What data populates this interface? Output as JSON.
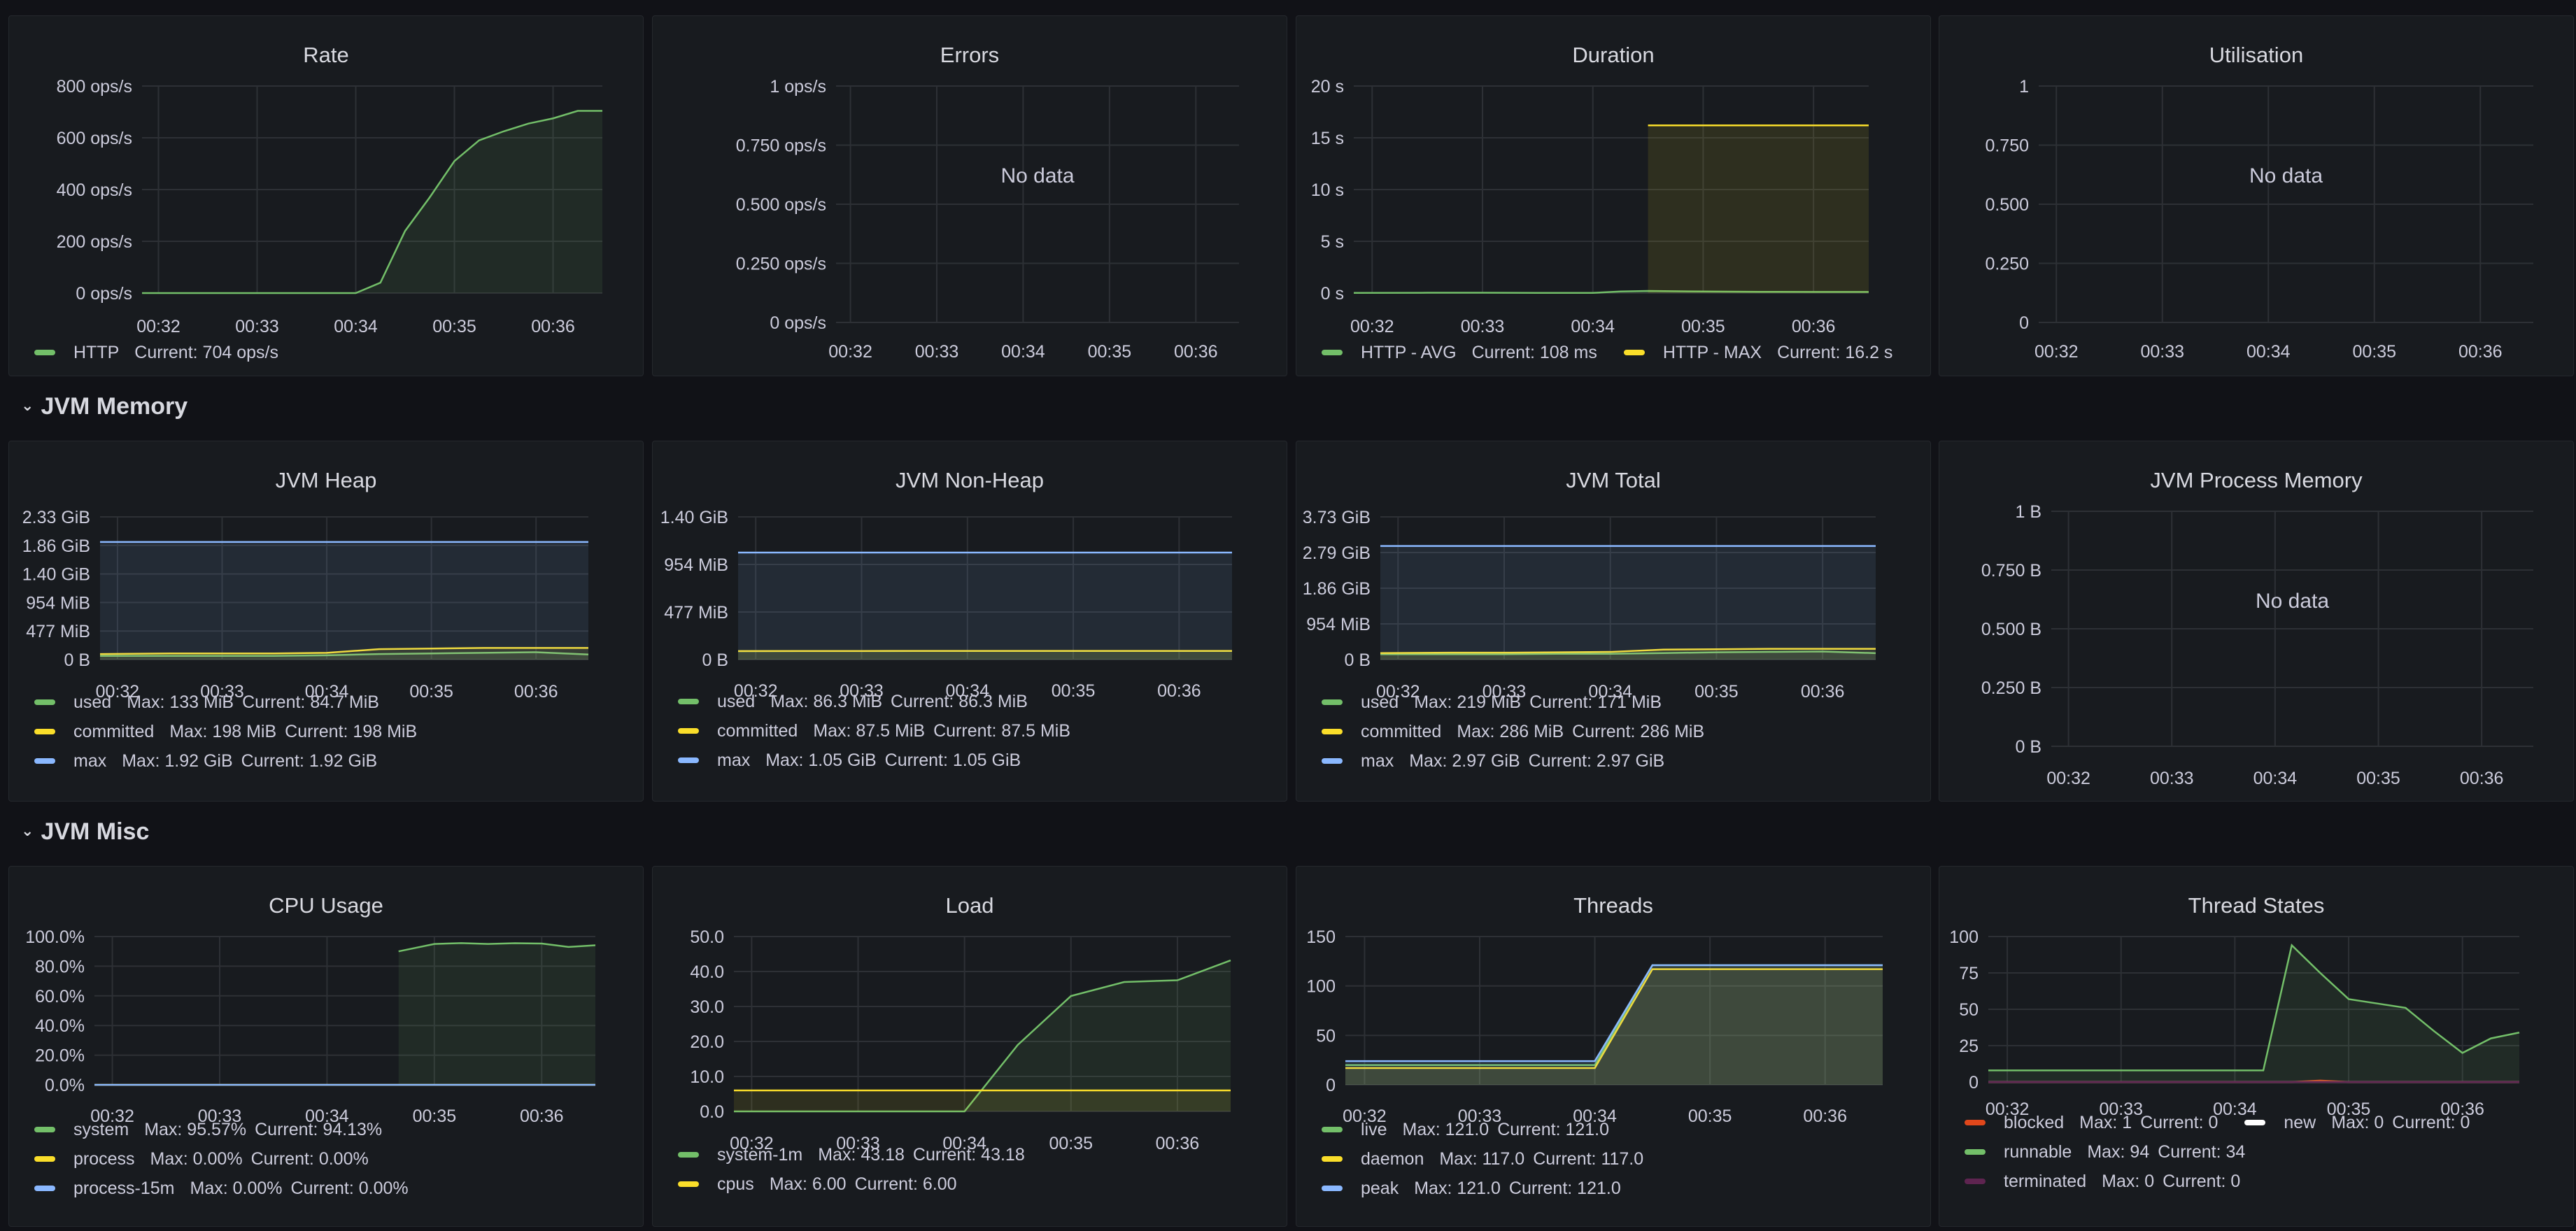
{
  "rows": {
    "jvm_memory": "JVM Memory",
    "jvm_misc": "JVM Misc"
  },
  "times": [
    "00:32",
    "00:33",
    "00:34",
    "00:35",
    "00:36"
  ],
  "panels": [
    {
      "id": "rate",
      "title": "Rate",
      "y_ticks": [
        "800 ops/s",
        "600 ops/s",
        "400 ops/s",
        "200 ops/s",
        "0 ops/s"
      ],
      "legend": [
        [
          {
            "name": "HTTP",
            "color": "#73bf69",
            "stats": [
              "Current: 704 ops/s"
            ]
          }
        ]
      ]
    },
    {
      "id": "errors",
      "title": "Errors",
      "no_data": "No data",
      "y_ticks": [
        "1 ops/s",
        "0.750 ops/s",
        "0.500 ops/s",
        "0.250 ops/s",
        "0 ops/s"
      ],
      "legend": []
    },
    {
      "id": "duration",
      "title": "Duration",
      "y_ticks": [
        "20 s",
        "15 s",
        "10 s",
        "5 s",
        "0 s"
      ],
      "legend": [
        [
          {
            "name": "HTTP - AVG",
            "color": "#73bf69",
            "stats": [
              "Current: 108 ms"
            ]
          },
          {
            "name": "HTTP - MAX",
            "color": "#fade2a",
            "stats": [
              "Current: 16.2 s"
            ]
          }
        ]
      ]
    },
    {
      "id": "utilisation",
      "title": "Utilisation",
      "no_data": "No data",
      "y_ticks": [
        "1",
        "0.750",
        "0.500",
        "0.250",
        "0"
      ],
      "legend": []
    },
    {
      "id": "jvm_heap",
      "title": "JVM Heap",
      "y_ticks": [
        "2.33 GiB",
        "1.86 GiB",
        "1.40 GiB",
        "954 MiB",
        "477 MiB",
        "0 B"
      ],
      "legend": [
        [
          {
            "name": "used",
            "color": "#73bf69",
            "stats": [
              "Max: 133 MiB",
              "Current: 84.7 MiB"
            ]
          }
        ],
        [
          {
            "name": "committed",
            "color": "#fade2a",
            "stats": [
              "Max: 198 MiB",
              "Current: 198 MiB"
            ]
          }
        ],
        [
          {
            "name": "max",
            "color": "#8ab8ff",
            "stats": [
              "Max: 1.92 GiB",
              "Current: 1.92 GiB"
            ]
          }
        ]
      ]
    },
    {
      "id": "jvm_nonheap",
      "title": "JVM Non-Heap",
      "y_ticks": [
        "1.40 GiB",
        "954 MiB",
        "477 MiB",
        "0 B"
      ],
      "legend": [
        [
          {
            "name": "used",
            "color": "#73bf69",
            "stats": [
              "Max: 86.3 MiB",
              "Current: 86.3 MiB"
            ]
          }
        ],
        [
          {
            "name": "committed",
            "color": "#fade2a",
            "stats": [
              "Max: 87.5 MiB",
              "Current: 87.5 MiB"
            ]
          }
        ],
        [
          {
            "name": "max",
            "color": "#8ab8ff",
            "stats": [
              "Max: 1.05 GiB",
              "Current: 1.05 GiB"
            ]
          }
        ]
      ]
    },
    {
      "id": "jvm_total",
      "title": "JVM Total",
      "y_ticks": [
        "3.73 GiB",
        "2.79 GiB",
        "1.86 GiB",
        "954 MiB",
        "0 B"
      ],
      "legend": [
        [
          {
            "name": "used",
            "color": "#73bf69",
            "stats": [
              "Max: 219 MiB",
              "Current: 171 MiB"
            ]
          }
        ],
        [
          {
            "name": "committed",
            "color": "#fade2a",
            "stats": [
              "Max: 286 MiB",
              "Current: 286 MiB"
            ]
          }
        ],
        [
          {
            "name": "max",
            "color": "#8ab8ff",
            "stats": [
              "Max: 2.97 GiB",
              "Current: 2.97 GiB"
            ]
          }
        ]
      ]
    },
    {
      "id": "jvm_process_memory",
      "title": "JVM Process Memory",
      "no_data": "No data",
      "y_ticks": [
        "1 B",
        "0.750 B",
        "0.500 B",
        "0.250 B",
        "0 B"
      ],
      "legend": []
    },
    {
      "id": "cpu_usage",
      "title": "CPU Usage",
      "y_ticks": [
        "100.0%",
        "80.0%",
        "60.0%",
        "40.0%",
        "20.0%",
        "0.0%"
      ],
      "legend": [
        [
          {
            "name": "system",
            "color": "#73bf69",
            "stats": [
              "Max: 95.57%",
              "Current: 94.13%"
            ]
          }
        ],
        [
          {
            "name": "process",
            "color": "#fade2a",
            "stats": [
              "Max: 0.00%",
              "Current: 0.00%"
            ]
          }
        ],
        [
          {
            "name": "process-15m",
            "color": "#8ab8ff",
            "stats": [
              "Max: 0.00%",
              "Current: 0.00%"
            ]
          }
        ]
      ]
    },
    {
      "id": "load",
      "title": "Load",
      "y_ticks": [
        "50.0",
        "40.0",
        "30.0",
        "20.0",
        "10.0",
        "0.0"
      ],
      "legend": [
        [
          {
            "name": "system-1m",
            "color": "#73bf69",
            "stats": [
              "Max: 43.18",
              "Current: 43.18"
            ]
          }
        ],
        [
          {
            "name": "cpus",
            "color": "#fade2a",
            "stats": [
              "Max: 6.00",
              "Current: 6.00"
            ]
          }
        ]
      ]
    },
    {
      "id": "threads",
      "title": "Threads",
      "y_ticks": [
        "150",
        "100",
        "50",
        "0"
      ],
      "legend": [
        [
          {
            "name": "live",
            "color": "#73bf69",
            "stats": [
              "Max: 121.0",
              "Current: 121.0"
            ]
          }
        ],
        [
          {
            "name": "daemon",
            "color": "#fade2a",
            "stats": [
              "Max: 117.0",
              "Current: 117.0"
            ]
          }
        ],
        [
          {
            "name": "peak",
            "color": "#8ab8ff",
            "stats": [
              "Max: 121.0",
              "Current: 121.0"
            ]
          }
        ]
      ]
    },
    {
      "id": "thread_states",
      "title": "Thread States",
      "y_ticks": [
        "100",
        "75",
        "50",
        "25",
        "0"
      ],
      "legend": [
        [
          {
            "name": "blocked",
            "color": "#e0471b",
            "stats": [
              "Max: 1",
              "Current: 0"
            ]
          },
          {
            "name": "new",
            "color": "#ffffff",
            "stats": [
              "Max: 0",
              "Current: 0"
            ]
          }
        ],
        [
          {
            "name": "runnable",
            "color": "#73bf69",
            "stats": [
              "Max: 94",
              "Current: 34"
            ]
          }
        ],
        [
          {
            "name": "terminated",
            "color": "#5e2450",
            "stats": [
              "Max: 0",
              "Current: 0"
            ]
          }
        ]
      ]
    }
  ],
  "chart_data": [
    {
      "type": "area",
      "title": "Rate",
      "ylim": [
        0,
        800
      ],
      "x": [
        "00:31:50",
        "00:32:00",
        "00:32:30",
        "00:33:00",
        "00:33:30",
        "00:34:00",
        "00:34:15",
        "00:34:30",
        "00:34:45",
        "00:35:00",
        "00:35:15",
        "00:35:30",
        "00:35:45",
        "00:36:00",
        "00:36:15",
        "00:36:30"
      ],
      "series": [
        {
          "name": "HTTP",
          "values": [
            0,
            0,
            0,
            0,
            0,
            0,
            40,
            240,
            370,
            510,
            590,
            625,
            655,
            675,
            704,
            704
          ]
        }
      ]
    },
    {
      "type": "line",
      "title": "Errors",
      "ylim": [
        0,
        1
      ],
      "series": []
    },
    {
      "type": "area",
      "title": "Duration",
      "ylim": [
        0,
        20
      ],
      "x": [
        "00:31:50",
        "00:32:30",
        "00:33:00",
        "00:33:30",
        "00:34:00",
        "00:34:15",
        "00:34:30",
        "00:35:00",
        "00:35:30",
        "00:36:00",
        "00:36:30"
      ],
      "series": [
        {
          "name": "HTTP - AVG",
          "values": [
            0.02,
            0.03,
            0.03,
            0.02,
            0.02,
            0.15,
            0.2,
            0.15,
            0.12,
            0.11,
            0.108
          ]
        },
        {
          "name": "HTTP - MAX",
          "values": [
            null,
            null,
            null,
            null,
            null,
            null,
            16.2,
            16.2,
            16.2,
            16.2,
            16.2
          ]
        }
      ]
    },
    {
      "type": "line",
      "title": "Utilisation",
      "ylim": [
        0,
        1
      ],
      "series": []
    },
    {
      "type": "area",
      "title": "JVM Heap",
      "ylim": [
        0,
        2.33
      ],
      "x": [
        "00:31:50",
        "00:32:30",
        "00:33:00",
        "00:33:30",
        "00:34:00",
        "00:34:30",
        "00:35:00",
        "00:35:30",
        "00:36:00",
        "00:36:30"
      ],
      "series": [
        {
          "name": "used",
          "values": [
            0.06,
            0.06,
            0.06,
            0.06,
            0.07,
            0.09,
            0.1,
            0.11,
            0.12,
            0.083
          ]
        },
        {
          "name": "committed",
          "values": [
            0.09,
            0.1,
            0.1,
            0.1,
            0.11,
            0.17,
            0.18,
            0.19,
            0.19,
            0.19
          ]
        },
        {
          "name": "max",
          "values": [
            1.92,
            1.92,
            1.92,
            1.92,
            1.92,
            1.92,
            1.92,
            1.92,
            1.92,
            1.92
          ]
        }
      ]
    },
    {
      "type": "area",
      "title": "JVM Non-Heap",
      "ylim": [
        0,
        1.4
      ],
      "x": [
        "00:31:50",
        "00:32:30",
        "00:33:00",
        "00:33:30",
        "00:34:00",
        "00:34:30",
        "00:35:00",
        "00:35:30",
        "00:36:00",
        "00:36:30"
      ],
      "series": [
        {
          "name": "used",
          "values": [
            0.082,
            0.083,
            0.083,
            0.084,
            0.084,
            0.084,
            0.084,
            0.084,
            0.084,
            0.084
          ]
        },
        {
          "name": "committed",
          "values": [
            0.083,
            0.084,
            0.084,
            0.085,
            0.085,
            0.085,
            0.085,
            0.085,
            0.085,
            0.085
          ]
        },
        {
          "name": "max",
          "values": [
            1.05,
            1.05,
            1.05,
            1.05,
            1.05,
            1.05,
            1.05,
            1.05,
            1.05,
            1.05
          ]
        }
      ]
    },
    {
      "type": "area",
      "title": "JVM Total",
      "ylim": [
        0,
        3.73
      ],
      "x": [
        "00:31:50",
        "00:32:30",
        "00:33:00",
        "00:33:30",
        "00:34:00",
        "00:34:30",
        "00:35:00",
        "00:35:30",
        "00:36:00",
        "00:36:30"
      ],
      "series": [
        {
          "name": "used",
          "values": [
            0.14,
            0.14,
            0.14,
            0.15,
            0.15,
            0.17,
            0.19,
            0.2,
            0.21,
            0.167
          ]
        },
        {
          "name": "committed",
          "values": [
            0.17,
            0.18,
            0.18,
            0.19,
            0.2,
            0.26,
            0.27,
            0.28,
            0.28,
            0.28
          ]
        },
        {
          "name": "max",
          "values": [
            2.97,
            2.97,
            2.97,
            2.97,
            2.97,
            2.97,
            2.97,
            2.97,
            2.97,
            2.97
          ]
        }
      ]
    },
    {
      "type": "line",
      "title": "JVM Process Memory",
      "ylim": [
        0,
        1
      ],
      "series": []
    },
    {
      "type": "area",
      "title": "CPU Usage",
      "ylim": [
        0,
        100
      ],
      "x": [
        "00:31:50",
        "00:32:30",
        "00:33:00",
        "00:33:30",
        "00:34:00",
        "00:34:30",
        "00:34:40",
        "00:35:00",
        "00:35:15",
        "00:35:30",
        "00:35:45",
        "00:36:00",
        "00:36:15",
        "00:36:30"
      ],
      "series": [
        {
          "name": "system",
          "values": [
            null,
            null,
            null,
            null,
            null,
            null,
            90,
            95,
            95.57,
            95,
            95.5,
            95.3,
            93,
            94.13
          ]
        },
        {
          "name": "process",
          "values": [
            0,
            0,
            0,
            0,
            0,
            0,
            0,
            0,
            0,
            0,
            0,
            0,
            0,
            0
          ]
        },
        {
          "name": "process-15m",
          "values": [
            0,
            0,
            0,
            0,
            0,
            0,
            0,
            0,
            0,
            0,
            0,
            0,
            0,
            0
          ]
        }
      ]
    },
    {
      "type": "area",
      "title": "Load",
      "ylim": [
        0,
        50
      ],
      "x": [
        "00:31:50",
        "00:32:30",
        "00:33:00",
        "00:33:30",
        "00:34:00",
        "00:34:30",
        "00:35:00",
        "00:35:30",
        "00:36:00",
        "00:36:30"
      ],
      "series": [
        {
          "name": "system-1m",
          "values": [
            0,
            0,
            0,
            0,
            0,
            19,
            33,
            37,
            37.5,
            43.18
          ]
        },
        {
          "name": "cpus",
          "values": [
            6,
            6,
            6,
            6,
            6,
            6,
            6,
            6,
            6,
            6
          ]
        }
      ]
    },
    {
      "type": "area",
      "title": "Threads",
      "ylim": [
        0,
        150
      ],
      "x": [
        "00:31:50",
        "00:32:30",
        "00:33:00",
        "00:33:30",
        "00:34:00",
        "00:34:30",
        "00:35:00",
        "00:35:30",
        "00:36:00",
        "00:36:30"
      ],
      "series": [
        {
          "name": "live",
          "values": [
            20,
            20,
            20,
            20,
            20,
            121,
            121,
            121,
            121,
            121
          ]
        },
        {
          "name": "daemon",
          "values": [
            17,
            17,
            17,
            17,
            17,
            117,
            117,
            117,
            117,
            117
          ]
        },
        {
          "name": "peak",
          "values": [
            24,
            24,
            24,
            24,
            24,
            121,
            121,
            121,
            121,
            121
          ]
        }
      ]
    },
    {
      "type": "area",
      "title": "Thread States",
      "ylim": [
        0,
        100
      ],
      "x": [
        "00:31:50",
        "00:32:30",
        "00:33:00",
        "00:33:30",
        "00:34:00",
        "00:34:15",
        "00:34:30",
        "00:34:45",
        "00:35:00",
        "00:35:15",
        "00:35:30",
        "00:35:45",
        "00:36:00",
        "00:36:15",
        "00:36:30"
      ],
      "series": [
        {
          "name": "blocked",
          "values": [
            0,
            0,
            0,
            0,
            0,
            0,
            0,
            1,
            0,
            0,
            0,
            0,
            0,
            0,
            0
          ]
        },
        {
          "name": "new",
          "values": [
            0,
            0,
            0,
            0,
            0,
            0,
            0,
            0,
            0,
            0,
            0,
            0,
            0,
            0,
            0
          ]
        },
        {
          "name": "runnable",
          "values": [
            8,
            8,
            8,
            8,
            8,
            8,
            94,
            75,
            57,
            54,
            51,
            35,
            20,
            30,
            34
          ]
        },
        {
          "name": "terminated",
          "values": [
            0,
            0,
            0,
            0,
            0,
            0,
            0,
            0,
            0,
            0,
            0,
            0,
            0,
            0,
            0
          ]
        }
      ]
    }
  ]
}
